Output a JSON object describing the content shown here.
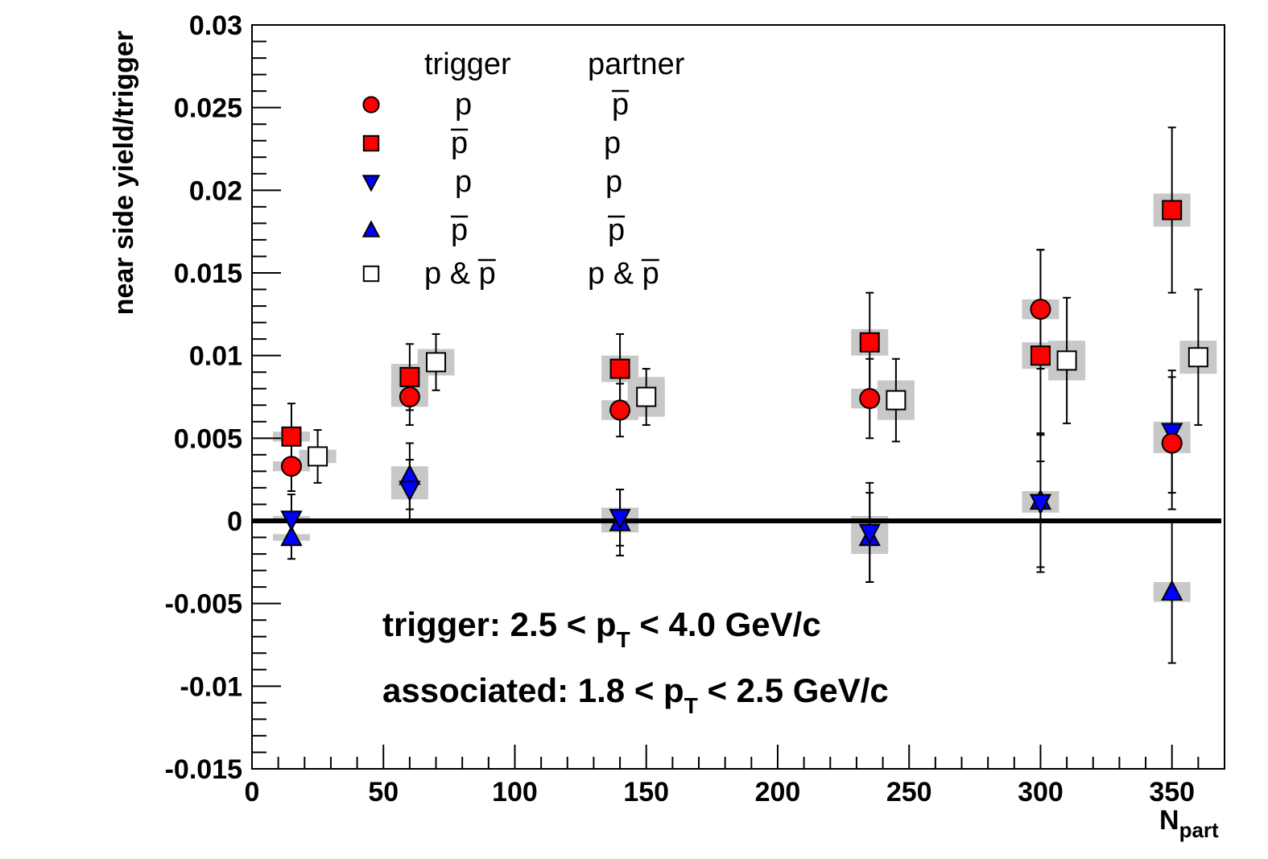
{
  "chart_data": {
    "type": "scatter",
    "title": "",
    "xlabel": "N",
    "xlabel_sub": "part",
    "ylabel": "near side yield/trigger",
    "xlim": [
      0,
      370
    ],
    "ylim": [
      -0.015,
      0.03
    ],
    "x_ticks": [
      {
        "value": 0,
        "label": "0"
      },
      {
        "value": 50,
        "label": "50"
      },
      {
        "value": 100,
        "label": "100"
      },
      {
        "value": 150,
        "label": "150"
      },
      {
        "value": 200,
        "label": "200"
      },
      {
        "value": 250,
        "label": "250"
      },
      {
        "value": 300,
        "label": "300"
      },
      {
        "value": 350,
        "label": "350"
      }
    ],
    "y_ticks": [
      {
        "value": -0.015,
        "label": "-0.015"
      },
      {
        "value": -0.01,
        "label": "-0.01"
      },
      {
        "value": -0.005,
        "label": "-0.005"
      },
      {
        "value": 0,
        "label": "0"
      },
      {
        "value": 0.005,
        "label": "0.005"
      },
      {
        "value": 0.01,
        "label": "0.01"
      },
      {
        "value": 0.015,
        "label": "0.015"
      },
      {
        "value": 0.02,
        "label": "0.02"
      },
      {
        "value": 0.025,
        "label": "0.025"
      },
      {
        "value": 0.03,
        "label": "0.03"
      }
    ],
    "legend": {
      "header_trigger": "trigger",
      "header_partner": "partner",
      "entries": [
        {
          "trigger": "p",
          "trigger_bar": false,
          "partner": "p",
          "partner_bar": true
        },
        {
          "trigger": "p",
          "trigger_bar": true,
          "partner": "p",
          "partner_bar": false
        },
        {
          "trigger": "p",
          "trigger_bar": false,
          "partner": "p",
          "partner_bar": false
        },
        {
          "trigger": "p",
          "trigger_bar": true,
          "partner": "p",
          "partner_bar": true
        },
        {
          "trigger": "p & p",
          "trigger_bar": "second",
          "partner": "p & p",
          "partner_bar": "second"
        }
      ]
    },
    "annotations": {
      "trigger_prefix": "trigger: 2.5 < p",
      "trigger_sub": "T",
      "trigger_suffix": " < 4.0 GeV/c",
      "assoc_prefix": "associated: 1.8 < p",
      "assoc_sub": "T",
      "assoc_suffix": " < 2.5 GeV/c"
    },
    "series": [
      {
        "name": "p-pbar",
        "marker": "circle",
        "color": "#ff0000",
        "points": [
          {
            "x": 15,
            "y": 0.0033,
            "err": 0.0015,
            "sys": 0.0003
          },
          {
            "x": 60,
            "y": 0.0075,
            "err": 0.0017,
            "sys": 0.0006
          },
          {
            "x": 140,
            "y": 0.0067,
            "err": 0.0016,
            "sys": 0.0006
          },
          {
            "x": 235,
            "y": 0.0074,
            "err": 0.0024,
            "sys": 0.0006
          },
          {
            "x": 300,
            "y": 0.0128,
            "err": 0.0036,
            "sys": 0.0006
          },
          {
            "x": 350,
            "y": 0.0047,
            "err": 0.004,
            "sys": 0.0006
          }
        ]
      },
      {
        "name": "pbar-p",
        "marker": "square",
        "color": "#ff0000",
        "points": [
          {
            "x": 15,
            "y": 0.0051,
            "err": 0.002,
            "sys": 0.0003
          },
          {
            "x": 60,
            "y": 0.0087,
            "err": 0.002,
            "sys": 0.0008
          },
          {
            "x": 140,
            "y": 0.0092,
            "err": 0.0021,
            "sys": 0.0008
          },
          {
            "x": 235,
            "y": 0.0108,
            "err": 0.003,
            "sys": 0.0008
          },
          {
            "x": 300,
            "y": 0.01,
            "err": 0.0064,
            "sys": 0.0008
          },
          {
            "x": 350,
            "y": 0.0188,
            "err": 0.005,
            "sys": 0.001
          }
        ]
      },
      {
        "name": "p-p",
        "marker": "triangle-down",
        "color": "#0000ff",
        "points": [
          {
            "x": 15,
            "y": 0.0001,
            "err": 0.0015,
            "sys": 0.0002
          },
          {
            "x": 60,
            "y": 0.0019,
            "err": 0.0018,
            "sys": 0.0006
          },
          {
            "x": 140,
            "y": 0.0002,
            "err": 0.0017,
            "sys": 0.0006
          },
          {
            "x": 235,
            "y": -0.0007,
            "err": 0.003,
            "sys": 0.001
          },
          {
            "x": 300,
            "y": 0.0011,
            "err": 0.0042,
            "sys": 0.0006
          },
          {
            "x": 350,
            "y": 0.0054,
            "err": 0.0037,
            "sys": 0.0006
          }
        ]
      },
      {
        "name": "pbar-pbar",
        "marker": "triangle-up",
        "color": "#0000ff",
        "points": [
          {
            "x": 15,
            "y": -0.001,
            "err": 0.0013,
            "sys": 0.0002
          },
          {
            "x": 60,
            "y": 0.0027,
            "err": 0.002,
            "sys": 0.0006
          },
          {
            "x": 140,
            "y": -0.0001,
            "err": 0.002,
            "sys": 0.0006
          },
          {
            "x": 235,
            "y": -0.001,
            "err": 0.0027,
            "sys": 0.001
          },
          {
            "x": 300,
            "y": 0.0012,
            "err": 0.004,
            "sys": 0.0006
          },
          {
            "x": 350,
            "y": -0.0043,
            "err": 0.0043,
            "sys": 0.0006
          }
        ]
      },
      {
        "name": "p&pbar-p&pbar",
        "marker": "open-square",
        "color": "#000000",
        "points": [
          {
            "x": 25,
            "y": 0.0039,
            "err": 0.0016,
            "sys": 0.0004
          },
          {
            "x": 70,
            "y": 0.0096,
            "err": 0.0017,
            "sys": 0.0008
          },
          {
            "x": 150,
            "y": 0.0075,
            "err": 0.0017,
            "sys": 0.0012
          },
          {
            "x": 245,
            "y": 0.0073,
            "err": 0.0025,
            "sys": 0.0012
          },
          {
            "x": 310,
            "y": 0.0097,
            "err": 0.0038,
            "sys": 0.0012
          },
          {
            "x": 360,
            "y": 0.0099,
            "err": 0.0041,
            "sys": 0.001
          }
        ]
      }
    ]
  }
}
